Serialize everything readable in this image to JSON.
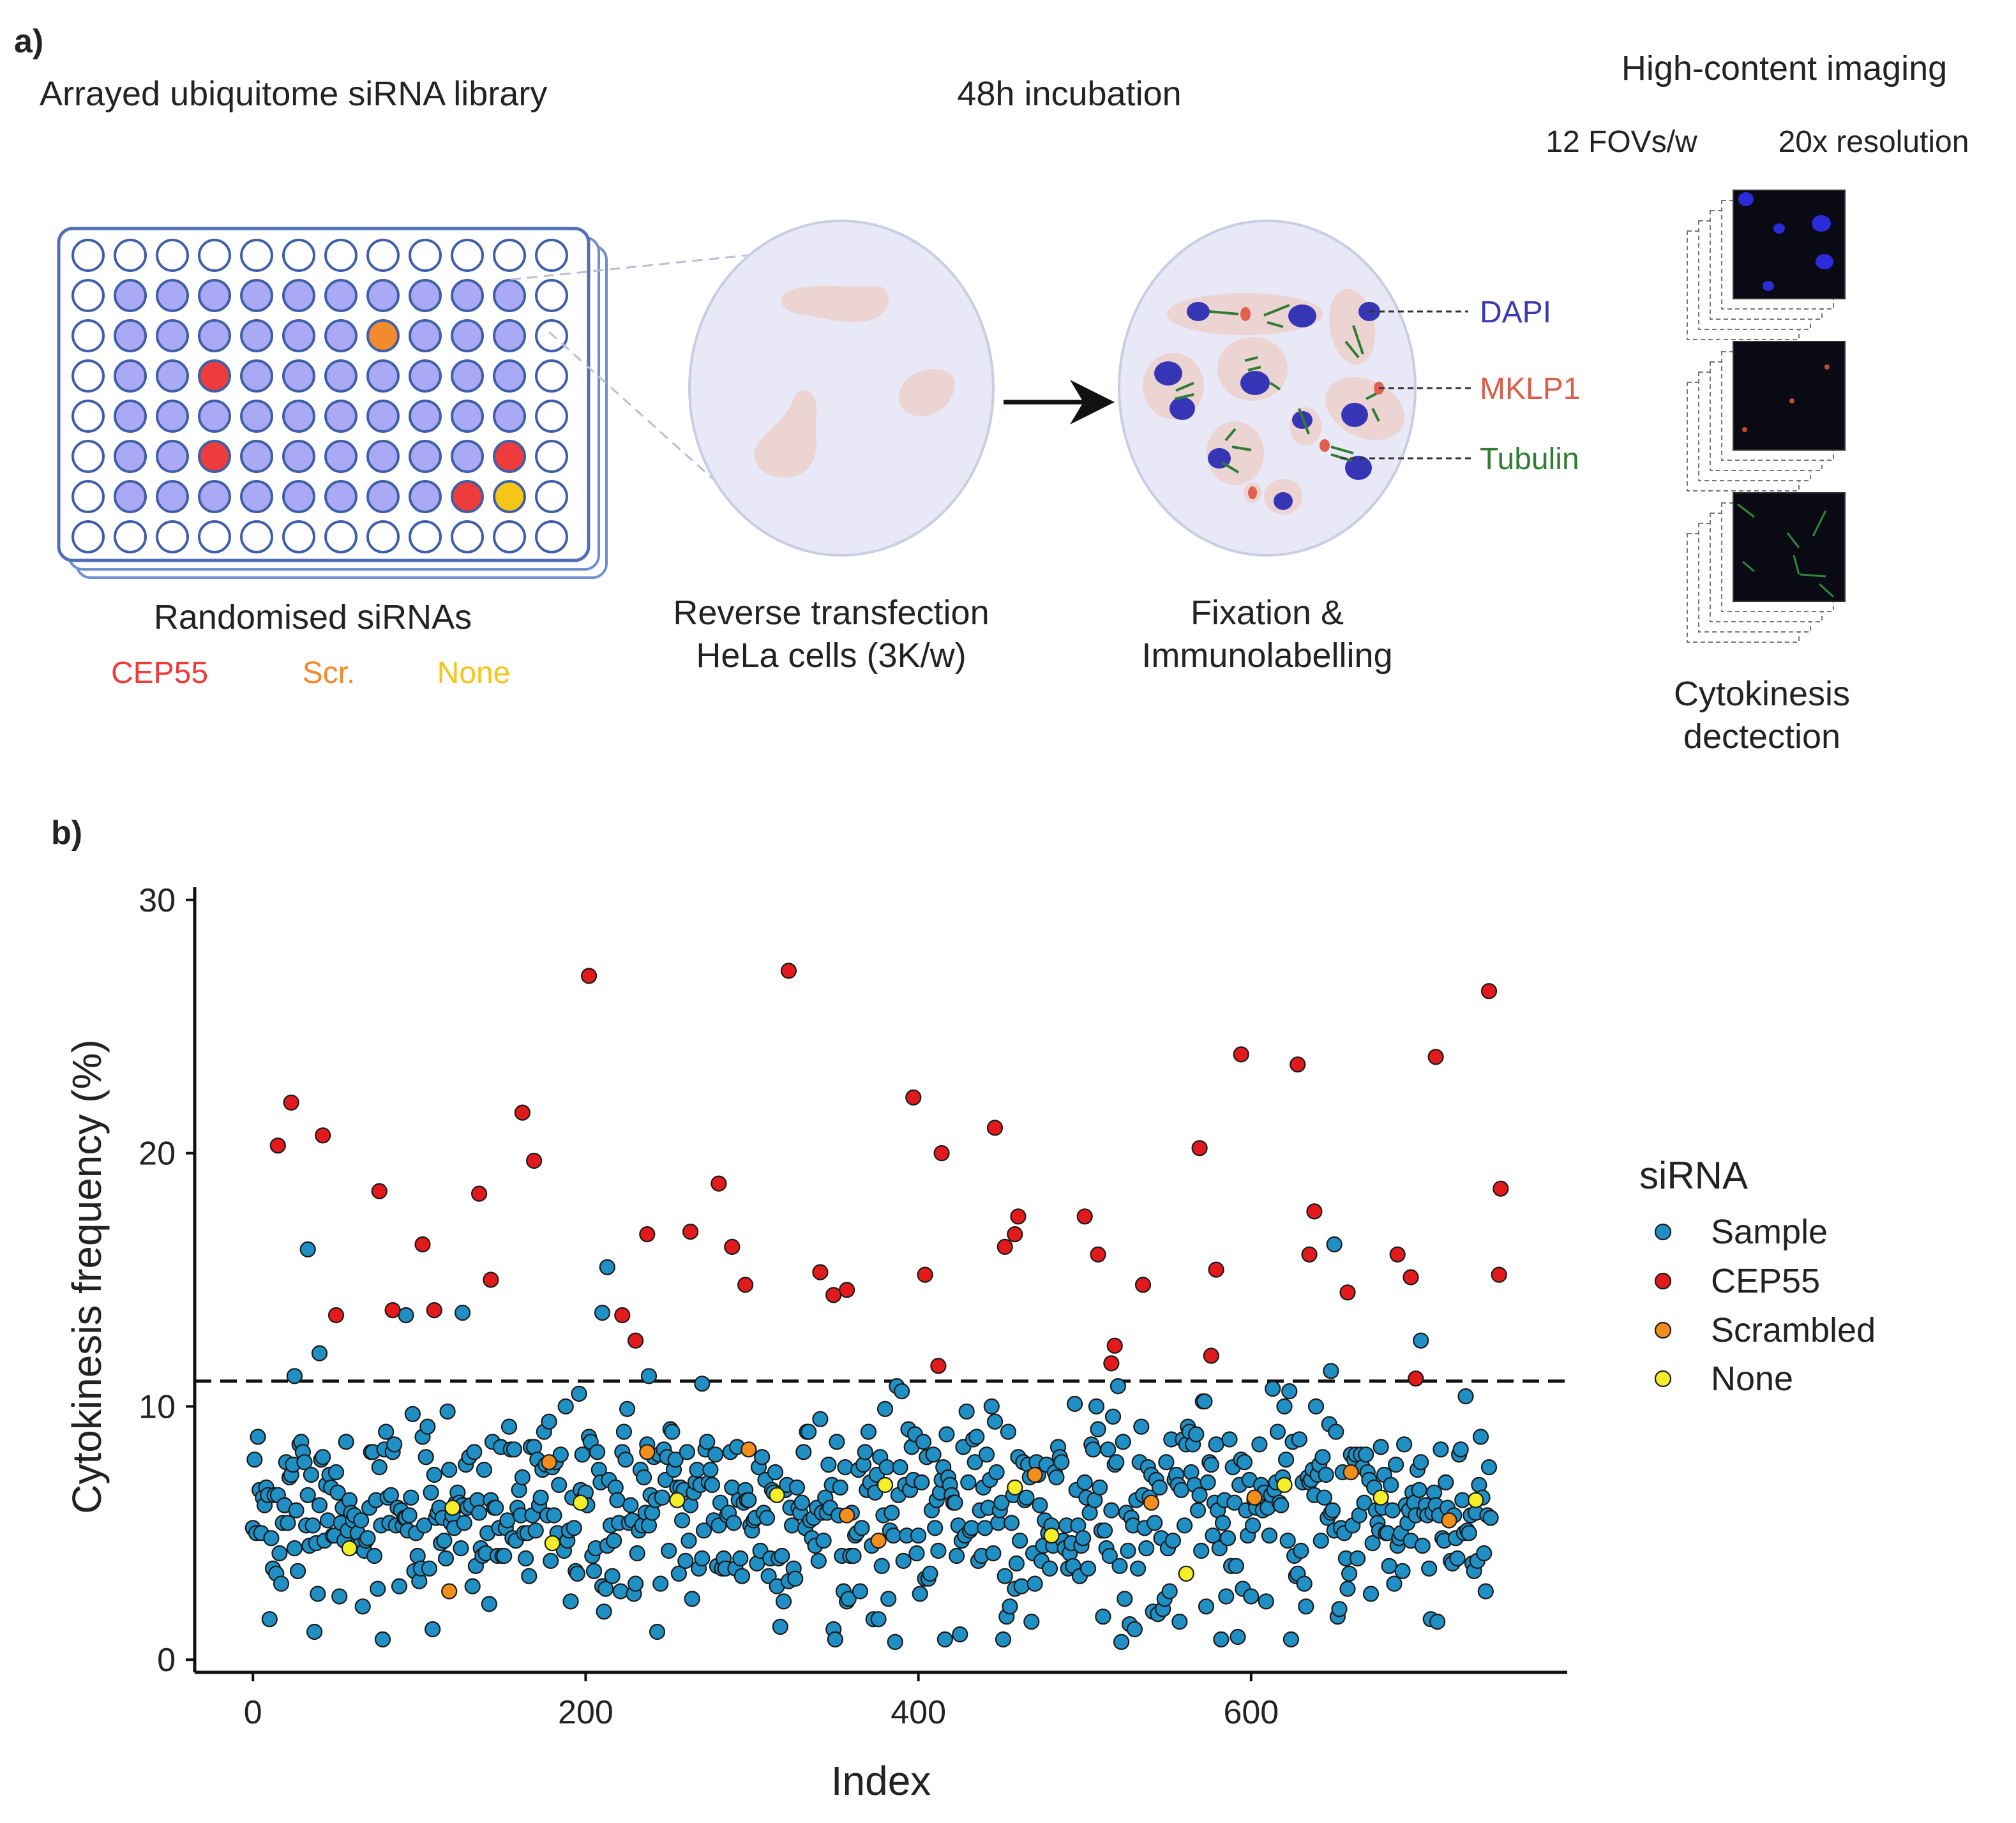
{
  "panel_a": {
    "label": "a)",
    "library_title": "Arrayed ubiquitome siRNA library",
    "incubation_title": "48h incubation",
    "imaging_title": "High-content imaging",
    "fovs_label": "12 FOVs/w",
    "resolution_label": "20x resolution",
    "randomised_label": "Randomised siRNAs",
    "legend_cep55": "CEP55",
    "legend_scr": "Scr.",
    "legend_none": "None",
    "transfection_line1": "Reverse transfection",
    "transfection_line2": "HeLa cells (3K/w)",
    "fixation_line1": "Fixation &",
    "fixation_line2": "Immunolabelling",
    "dapi_label": "DAPI",
    "mklp1_label": "MKLP1",
    "tubulin_label": "Tubulin",
    "cytokinesis_line1": "Cytokinesis",
    "cytokinesis_line2": "dectection",
    "colors": {
      "cep55": "#ee3b3b",
      "scr": "#f28a2e",
      "none": "#f5c518",
      "sample_well": "#a9a9f5",
      "dapi": "#3a3ab0",
      "mklp1": "#d95f4a",
      "tubulin": "#2e7d32"
    }
  },
  "panel_b": {
    "label": "b)"
  },
  "chart_data": {
    "type": "scatter",
    "xlabel": "Index",
    "ylabel": "Cytokinesis frequency (%)",
    "xlim": [
      -35,
      790
    ],
    "ylim": [
      -0.5,
      30.5
    ],
    "xticks": [
      0,
      200,
      400,
      600
    ],
    "yticks": [
      0,
      10,
      20,
      30
    ],
    "threshold": 11,
    "legend_title": "siRNA",
    "series": [
      {
        "name": "Sample",
        "color": "#1f8fc4",
        "values": []
      },
      {
        "name": "CEP55",
        "color": "#e31a1c",
        "values": [
          [
            15,
            20.3
          ],
          [
            23,
            22
          ],
          [
            42,
            20.7
          ],
          [
            50,
            13.6
          ],
          [
            76,
            18.5
          ],
          [
            84,
            13.8
          ],
          [
            102,
            16.4
          ],
          [
            109,
            13.8
          ],
          [
            136,
            18.4
          ],
          [
            143,
            15
          ],
          [
            162,
            21.6
          ],
          [
            169,
            19.7
          ],
          [
            202,
            27
          ],
          [
            222,
            13.6
          ],
          [
            230,
            12.6
          ],
          [
            237,
            16.8
          ],
          [
            263,
            16.9
          ],
          [
            280,
            18.8
          ],
          [
            288,
            16.3
          ],
          [
            296,
            14.8
          ],
          [
            322,
            27.2
          ],
          [
            341,
            15.3
          ],
          [
            349,
            14.4
          ],
          [
            357,
            14.6
          ],
          [
            397,
            22.2
          ],
          [
            404,
            15.2
          ],
          [
            412,
            11.6
          ],
          [
            414,
            20
          ],
          [
            446,
            21
          ],
          [
            452,
            16.3
          ],
          [
            460,
            17.5
          ],
          [
            458,
            16.8
          ],
          [
            500,
            17.5
          ],
          [
            508,
            16
          ],
          [
            518,
            12.4
          ],
          [
            516,
            11.7
          ],
          [
            535,
            14.8
          ],
          [
            569,
            20.2
          ],
          [
            576,
            12
          ],
          [
            579,
            15.4
          ],
          [
            594,
            23.9
          ],
          [
            628,
            23.5
          ],
          [
            635,
            16
          ],
          [
            638,
            17.7
          ],
          [
            658,
            14.5
          ],
          [
            688,
            16
          ],
          [
            696,
            15.1
          ],
          [
            699,
            11.1
          ],
          [
            711,
            23.8
          ],
          [
            743,
            26.4
          ],
          [
            750,
            18.6
          ],
          [
            749,
            15.2
          ]
        ]
      },
      {
        "name": "Scrambled",
        "color": "#f28e1c",
        "values": [
          [
            178,
            7.8
          ],
          [
            118,
            2.7
          ],
          [
            237,
            8.2
          ],
          [
            298,
            8.3
          ],
          [
            357,
            5.7
          ],
          [
            376,
            4.7
          ],
          [
            470,
            7.3
          ],
          [
            540,
            6.2
          ],
          [
            602,
            6.4
          ],
          [
            660,
            7.4
          ],
          [
            719,
            5.5
          ]
        ]
      },
      {
        "name": "None",
        "color": "#f5ef2a",
        "values": [
          [
            58,
            4.4
          ],
          [
            120,
            6
          ],
          [
            180,
            4.6
          ],
          [
            197,
            6.2
          ],
          [
            255,
            6.3
          ],
          [
            315,
            6.5
          ],
          [
            380,
            6.9
          ],
          [
            458,
            6.8
          ],
          [
            480,
            4.9
          ],
          [
            561,
            3.4
          ],
          [
            620,
            6.9
          ],
          [
            678,
            6.4
          ],
          [
            735,
            6.3
          ]
        ]
      }
    ]
  }
}
